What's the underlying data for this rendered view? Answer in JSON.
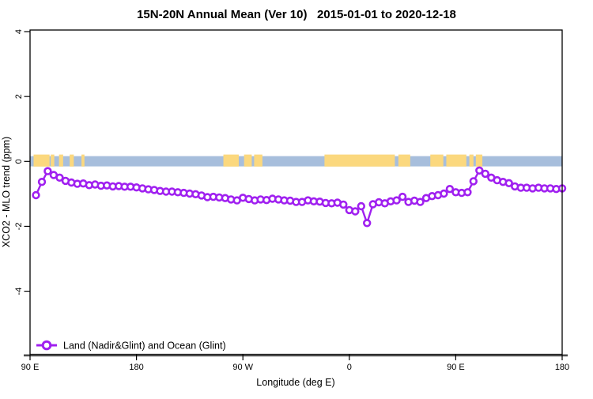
{
  "title": "15N-20N Annual Mean (Ver 10)   2015-01-01 to 2020-12-18",
  "colors": {
    "line": "#A020F0",
    "marker_stroke": "#A020F0",
    "marker_fill": "#FFFFFF",
    "ocean_band": "#A7BEDC",
    "land_band": "#FBD87E",
    "frame": "#000000",
    "baseline": "#4D4D4D",
    "text": "#000000",
    "background": "#FFFFFF"
  },
  "legend": {
    "label": "Land (Nadir&Glint) and Ocean (Glint)"
  },
  "chart_data": {
    "type": "line",
    "title": "15N-20N Annual Mean (Ver 10)   2015-01-01 to 2020-12-18",
    "xlabel": "Longitude (deg E)",
    "ylabel": "XCO2 - MLO trend (ppm)",
    "xlim": [
      90,
      540
    ],
    "ylim": [
      -5.95,
      4.05
    ],
    "grid": false,
    "legend_position": "bottom-left",
    "x_ticks": [
      {
        "value": 90,
        "label": "90 E"
      },
      {
        "value": 180,
        "label": "180"
      },
      {
        "value": 270,
        "label": "90 W"
      },
      {
        "value": 360,
        "label": "0"
      },
      {
        "value": 450,
        "label": "90 E"
      },
      {
        "value": 540,
        "label": "180"
      }
    ],
    "y_ticks": [
      {
        "value": 4,
        "label": "4"
      },
      {
        "value": 2,
        "label": "2"
      },
      {
        "value": 0,
        "label": "0"
      },
      {
        "value": -2,
        "label": "-2"
      },
      {
        "value": -4,
        "label": "-4"
      }
    ],
    "land_ocean_band": {
      "description": "ocean-blue strip at y=0 with sandy-yellow land segments, longitude in deg E 90-540",
      "band_center_value": 0,
      "ocean_extent": [
        90,
        540
      ],
      "land_segments": [
        [
          93,
          106.5
        ],
        [
          107.5,
          110.5
        ],
        [
          114.5,
          118
        ],
        [
          123.5,
          127
        ],
        [
          133.5,
          136
        ],
        [
          253.5,
          266.5
        ],
        [
          271,
          277.5
        ],
        [
          279.5,
          286.5
        ],
        [
          339,
          398.5
        ],
        [
          401.5,
          411.5
        ],
        [
          428.5,
          439.5
        ],
        [
          442,
          459
        ],
        [
          461.5,
          465
        ],
        [
          467,
          472.5
        ]
      ]
    },
    "series": [
      {
        "name": "Land (Nadir&Glint) and Ocean (Glint)",
        "x": [
          95,
          100,
          105,
          110,
          115,
          120,
          125,
          130,
          135,
          140,
          145,
          150,
          155,
          160,
          165,
          170,
          175,
          180,
          185,
          190,
          195,
          200,
          205,
          210,
          215,
          220,
          225,
          230,
          235,
          240,
          245,
          250,
          255,
          260,
          265,
          270,
          275,
          280,
          285,
          290,
          295,
          300,
          305,
          310,
          315,
          320,
          325,
          330,
          335,
          340,
          345,
          350,
          355,
          360,
          365,
          370,
          375,
          380,
          385,
          390,
          395,
          400,
          405,
          410,
          415,
          420,
          425,
          430,
          435,
          440,
          445,
          450,
          455,
          460,
          465,
          470,
          475,
          480,
          485,
          490,
          495,
          500,
          505,
          510,
          515,
          520,
          525,
          530,
          535,
          540
        ],
        "y": [
          -1.04,
          -0.63,
          -0.3,
          -0.42,
          -0.5,
          -0.6,
          -0.65,
          -0.69,
          -0.68,
          -0.73,
          -0.71,
          -0.75,
          -0.74,
          -0.77,
          -0.76,
          -0.78,
          -0.78,
          -0.8,
          -0.83,
          -0.86,
          -0.88,
          -0.91,
          -0.93,
          -0.93,
          -0.95,
          -0.97,
          -0.99,
          -1.01,
          -1.05,
          -1.1,
          -1.09,
          -1.11,
          -1.13,
          -1.17,
          -1.2,
          -1.12,
          -1.16,
          -1.2,
          -1.17,
          -1.19,
          -1.15,
          -1.17,
          -1.2,
          -1.21,
          -1.25,
          -1.25,
          -1.2,
          -1.23,
          -1.24,
          -1.28,
          -1.29,
          -1.27,
          -1.33,
          -1.5,
          -1.54,
          -1.38,
          -1.9,
          -1.32,
          -1.26,
          -1.29,
          -1.23,
          -1.2,
          -1.09,
          -1.25,
          -1.21,
          -1.25,
          -1.13,
          -1.07,
          -1.04,
          -0.99,
          -0.85,
          -0.95,
          -0.97,
          -0.95,
          -0.61,
          -0.28,
          -0.38,
          -0.5,
          -0.58,
          -0.63,
          -0.67,
          -0.77,
          -0.81,
          -0.81,
          -0.83,
          -0.81,
          -0.83,
          -0.83,
          -0.85,
          -0.83
        ]
      }
    ]
  }
}
